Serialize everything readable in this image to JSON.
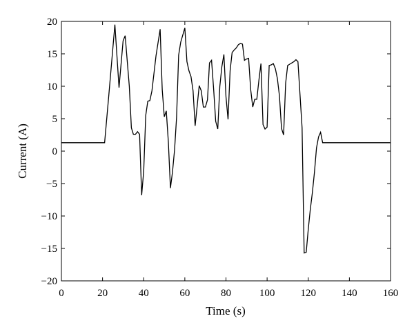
{
  "chart_data": {
    "type": "line",
    "title": "",
    "xlabel": "Time (s)",
    "ylabel": "Current (A)",
    "xlim": [
      0,
      160
    ],
    "ylim": [
      -20,
      20
    ],
    "xticks": [
      0,
      20,
      40,
      60,
      80,
      100,
      120,
      140,
      160
    ],
    "yticks": [
      -20,
      -15,
      -10,
      -5,
      0,
      5,
      10,
      15,
      20
    ],
    "grid": false,
    "legend": "none",
    "line_color": "#000000",
    "series": [
      {
        "x": [
          0,
          21,
          23,
          26,
          28,
          30,
          31,
          33,
          34,
          35,
          36,
          37,
          38,
          39,
          40,
          41,
          42,
          43,
          44,
          46,
          48,
          49,
          50,
          51,
          52,
          53,
          54,
          55,
          56,
          57,
          58,
          60,
          61,
          62,
          63,
          64,
          65,
          66,
          67,
          68,
          69,
          70,
          71,
          72,
          73,
          74,
          75,
          76,
          77,
          78,
          79,
          80,
          81,
          82,
          83,
          84,
          85,
          86,
          87,
          88,
          89,
          90,
          91,
          92,
          93,
          94,
          95,
          96,
          97,
          98,
          99,
          100,
          101,
          102,
          103,
          104,
          105,
          106,
          107,
          108,
          109,
          110,
          111,
          112,
          113,
          114,
          115,
          116,
          117,
          118,
          119,
          120,
          121,
          122,
          123,
          124,
          125,
          126,
          127,
          128,
          160
        ],
        "y": [
          1.3,
          1.3,
          8.5,
          19.5,
          9.8,
          17,
          17.8,
          10,
          3.6,
          2.6,
          2.6,
          3,
          2.6,
          -6.8,
          -3,
          5.5,
          7.7,
          7.8,
          9.3,
          14.7,
          18.8,
          9.5,
          5.3,
          6.2,
          1.4,
          -5.7,
          -3.2,
          0.2,
          5.2,
          14.8,
          16.8,
          19,
          13.8,
          12.4,
          11.5,
          9.3,
          3.9,
          7,
          10.1,
          9.3,
          6.8,
          6.8,
          7.9,
          13.6,
          14,
          9.6,
          4.6,
          3.4,
          10,
          13,
          14.9,
          8.4,
          4.9,
          12.4,
          15.2,
          15.6,
          15.9,
          16.4,
          16.6,
          16.5,
          14,
          14.2,
          14.3,
          9.5,
          6.8,
          8,
          8,
          10.9,
          13.5,
          4.1,
          3.4,
          3.7,
          13.2,
          13.3,
          13.5,
          12.7,
          11.2,
          8.5,
          3.5,
          2.5,
          10.5,
          13.2,
          13.4,
          13.6,
          13.8,
          14.1,
          13.8,
          8.7,
          3.6,
          -15.7,
          -15.6,
          -12,
          -9,
          -6.4,
          -3.3,
          0.5,
          2.2,
          2.9,
          1.3,
          1.3,
          1.3
        ]
      }
    ]
  }
}
